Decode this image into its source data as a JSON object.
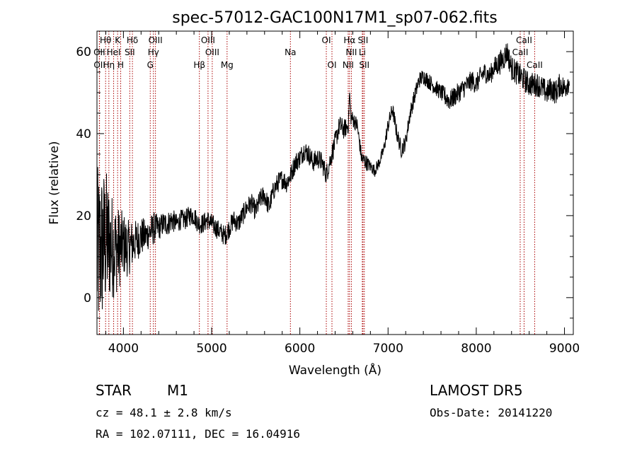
{
  "chart_data": {
    "type": "line",
    "title": "spec-57012-GAC100N17M1_sp07-062.fits",
    "xlabel": "Wavelength (Å)",
    "ylabel": "Flux (relative)",
    "xlim": [
      3700,
      9100
    ],
    "ylim": [
      -9,
      65
    ],
    "xticks": [
      4000,
      5000,
      6000,
      7000,
      8000,
      9000
    ],
    "yticks": [
      0,
      20,
      40,
      60
    ],
    "xtick_labels": [
      "4000",
      "5000",
      "6000",
      "7000",
      "8000",
      "9000"
    ],
    "ytick_labels": [
      "0",
      "20",
      "40",
      "60"
    ],
    "grid": false,
    "series": [
      {
        "color": "#000000",
        "x": [
          3700,
          3750,
          3800,
          3850,
          3900,
          3950,
          4000,
          4050,
          4100,
          4150,
          4200,
          4250,
          4300,
          4350,
          4400,
          4450,
          4500,
          4550,
          4600,
          4650,
          4700,
          4750,
          4800,
          4850,
          4900,
          4950,
          5000,
          5050,
          5100,
          5150,
          5200,
          5250,
          5300,
          5350,
          5400,
          5450,
          5500,
          5550,
          5600,
          5650,
          5700,
          5750,
          5800,
          5850,
          5900,
          5950,
          6000,
          6050,
          6100,
          6150,
          6200,
          6250,
          6300,
          6350,
          6400,
          6450,
          6500,
          6550,
          6563,
          6580,
          6620,
          6650,
          6700,
          6750,
          6800,
          6850,
          6900,
          6950,
          7000,
          7050,
          7100,
          7150,
          7200,
          7250,
          7300,
          7350,
          7400,
          7450,
          7500,
          7550,
          7600,
          7650,
          7700,
          7750,
          7800,
          7850,
          7900,
          7950,
          8000,
          8050,
          8100,
          8150,
          8200,
          8250,
          8300,
          8350,
          8400,
          8450,
          8500,
          8550,
          8600,
          8650,
          8700,
          8750,
          8800,
          8850,
          8900,
          8950,
          9000,
          9050,
          9060
        ],
        "y": [
          10,
          12,
          14,
          13,
          12,
          12,
          13,
          12,
          13,
          14,
          15,
          15,
          16,
          17,
          17,
          18,
          18,
          19,
          18,
          19,
          19,
          20,
          20,
          18,
          18,
          19,
          18,
          17,
          16,
          15,
          17,
          19,
          18,
          20,
          22,
          23,
          21,
          24,
          25,
          22,
          26,
          28,
          29,
          28,
          30,
          33,
          34,
          36,
          35,
          33,
          34,
          33,
          30,
          34,
          38,
          42,
          41,
          42,
          50,
          44,
          43,
          42,
          34,
          33,
          32,
          31,
          33,
          36,
          42,
          46,
          40,
          36,
          38,
          45,
          49,
          53,
          54,
          53,
          52,
          51,
          50,
          49,
          48,
          49,
          50,
          51,
          52,
          53,
          52,
          54,
          55,
          54,
          56,
          57,
          58,
          60,
          56,
          55,
          54,
          53,
          52,
          52,
          52,
          51,
          50,
          51,
          50,
          52,
          51,
          53,
          53
        ],
        "noise": [
          22,
          20,
          18,
          14,
          12,
          10,
          8,
          7,
          6,
          5,
          5,
          4,
          4,
          4,
          3,
          3,
          3,
          3,
          2.5,
          2.5,
          2.5,
          2.5,
          2.5,
          2.5,
          2.5,
          2.5,
          2.5,
          2.5,
          2.5,
          2.5,
          2.5,
          2.5,
          2.5,
          2.5,
          2.5,
          2.5,
          2.5,
          2.5,
          2.5,
          2.5,
          2.5,
          2.5,
          2.5,
          2.5,
          2.5,
          2.5,
          2.5,
          2.5,
          2.5,
          2.5,
          2.5,
          2.5,
          2.5,
          2.5,
          2.5,
          2.5,
          2.5,
          2,
          2,
          2,
          2,
          2,
          2,
          2,
          1.5,
          1.5,
          1.5,
          1.5,
          2,
          2,
          2,
          2,
          2,
          2,
          2,
          2,
          2,
          2,
          2,
          2,
          2,
          2.5,
          2.5,
          2.5,
          2.5,
          2.5,
          2.5,
          2.5,
          2.5,
          2.5,
          2.5,
          2.5,
          2.5,
          3,
          3,
          3,
          3,
          3,
          3,
          3,
          3,
          3,
          3,
          3,
          3,
          3,
          3,
          3,
          3,
          3,
          3
        ]
      }
    ],
    "spectral_lines": [
      {
        "label": "Hθ",
        "x": 3798,
        "row": 0
      },
      {
        "label": "K",
        "x": 3934,
        "row": 0
      },
      {
        "label": "Hδ",
        "x": 4102,
        "row": 0
      },
      {
        "label": "OIII",
        "x": 4363,
        "row": 0
      },
      {
        "label": "OIII",
        "x": 4959,
        "row": 0
      },
      {
        "label": "OI",
        "x": 6300,
        "row": 0
      },
      {
        "label": "Hα",
        "x": 6563,
        "row": 0
      },
      {
        "label": "SII",
        "x": 6716,
        "row": 0
      },
      {
        "label": "CaII",
        "x": 8542,
        "row": 0
      },
      {
        "label": "OII",
        "x": 3727,
        "row": 1
      },
      {
        "label": "HeI",
        "x": 3889,
        "row": 1
      },
      {
        "label": "SII",
        "x": 4072,
        "row": 1
      },
      {
        "label": "Hγ",
        "x": 4340,
        "row": 1
      },
      {
        "label": "OIII",
        "x": 5007,
        "row": 1
      },
      {
        "label": "Na",
        "x": 5893,
        "row": 1
      },
      {
        "label": "NII",
        "x": 6584,
        "row": 1
      },
      {
        "label": "Li",
        "x": 6708,
        "row": 1
      },
      {
        "label": "CaII",
        "x": 8498,
        "row": 1
      },
      {
        "label": "OII",
        "x": 3729,
        "row": 2
      },
      {
        "label": "Hη",
        "x": 3835,
        "row": 2
      },
      {
        "label": "H",
        "x": 3969,
        "row": 2
      },
      {
        "label": "G",
        "x": 4304,
        "row": 2
      },
      {
        "label": "Hβ",
        "x": 4861,
        "row": 2
      },
      {
        "label": "Mg",
        "x": 5175,
        "row": 2
      },
      {
        "label": "OI",
        "x": 6364,
        "row": 2
      },
      {
        "label": "NII",
        "x": 6548,
        "row": 2
      },
      {
        "label": "SII",
        "x": 6731,
        "row": 2
      },
      {
        "label": "CaII",
        "x": 8662,
        "row": 2
      }
    ],
    "line_color": "#aa0000",
    "annotations": {
      "object_class": "STAR",
      "subclass": "M1",
      "survey": "LAMOST DR5",
      "cz": "cz = 48.1 ± 2.8 km/s",
      "obs_date": "Obs-Date: 20141220",
      "coords": "RA = 102.07111, DEC =  16.04916"
    }
  }
}
